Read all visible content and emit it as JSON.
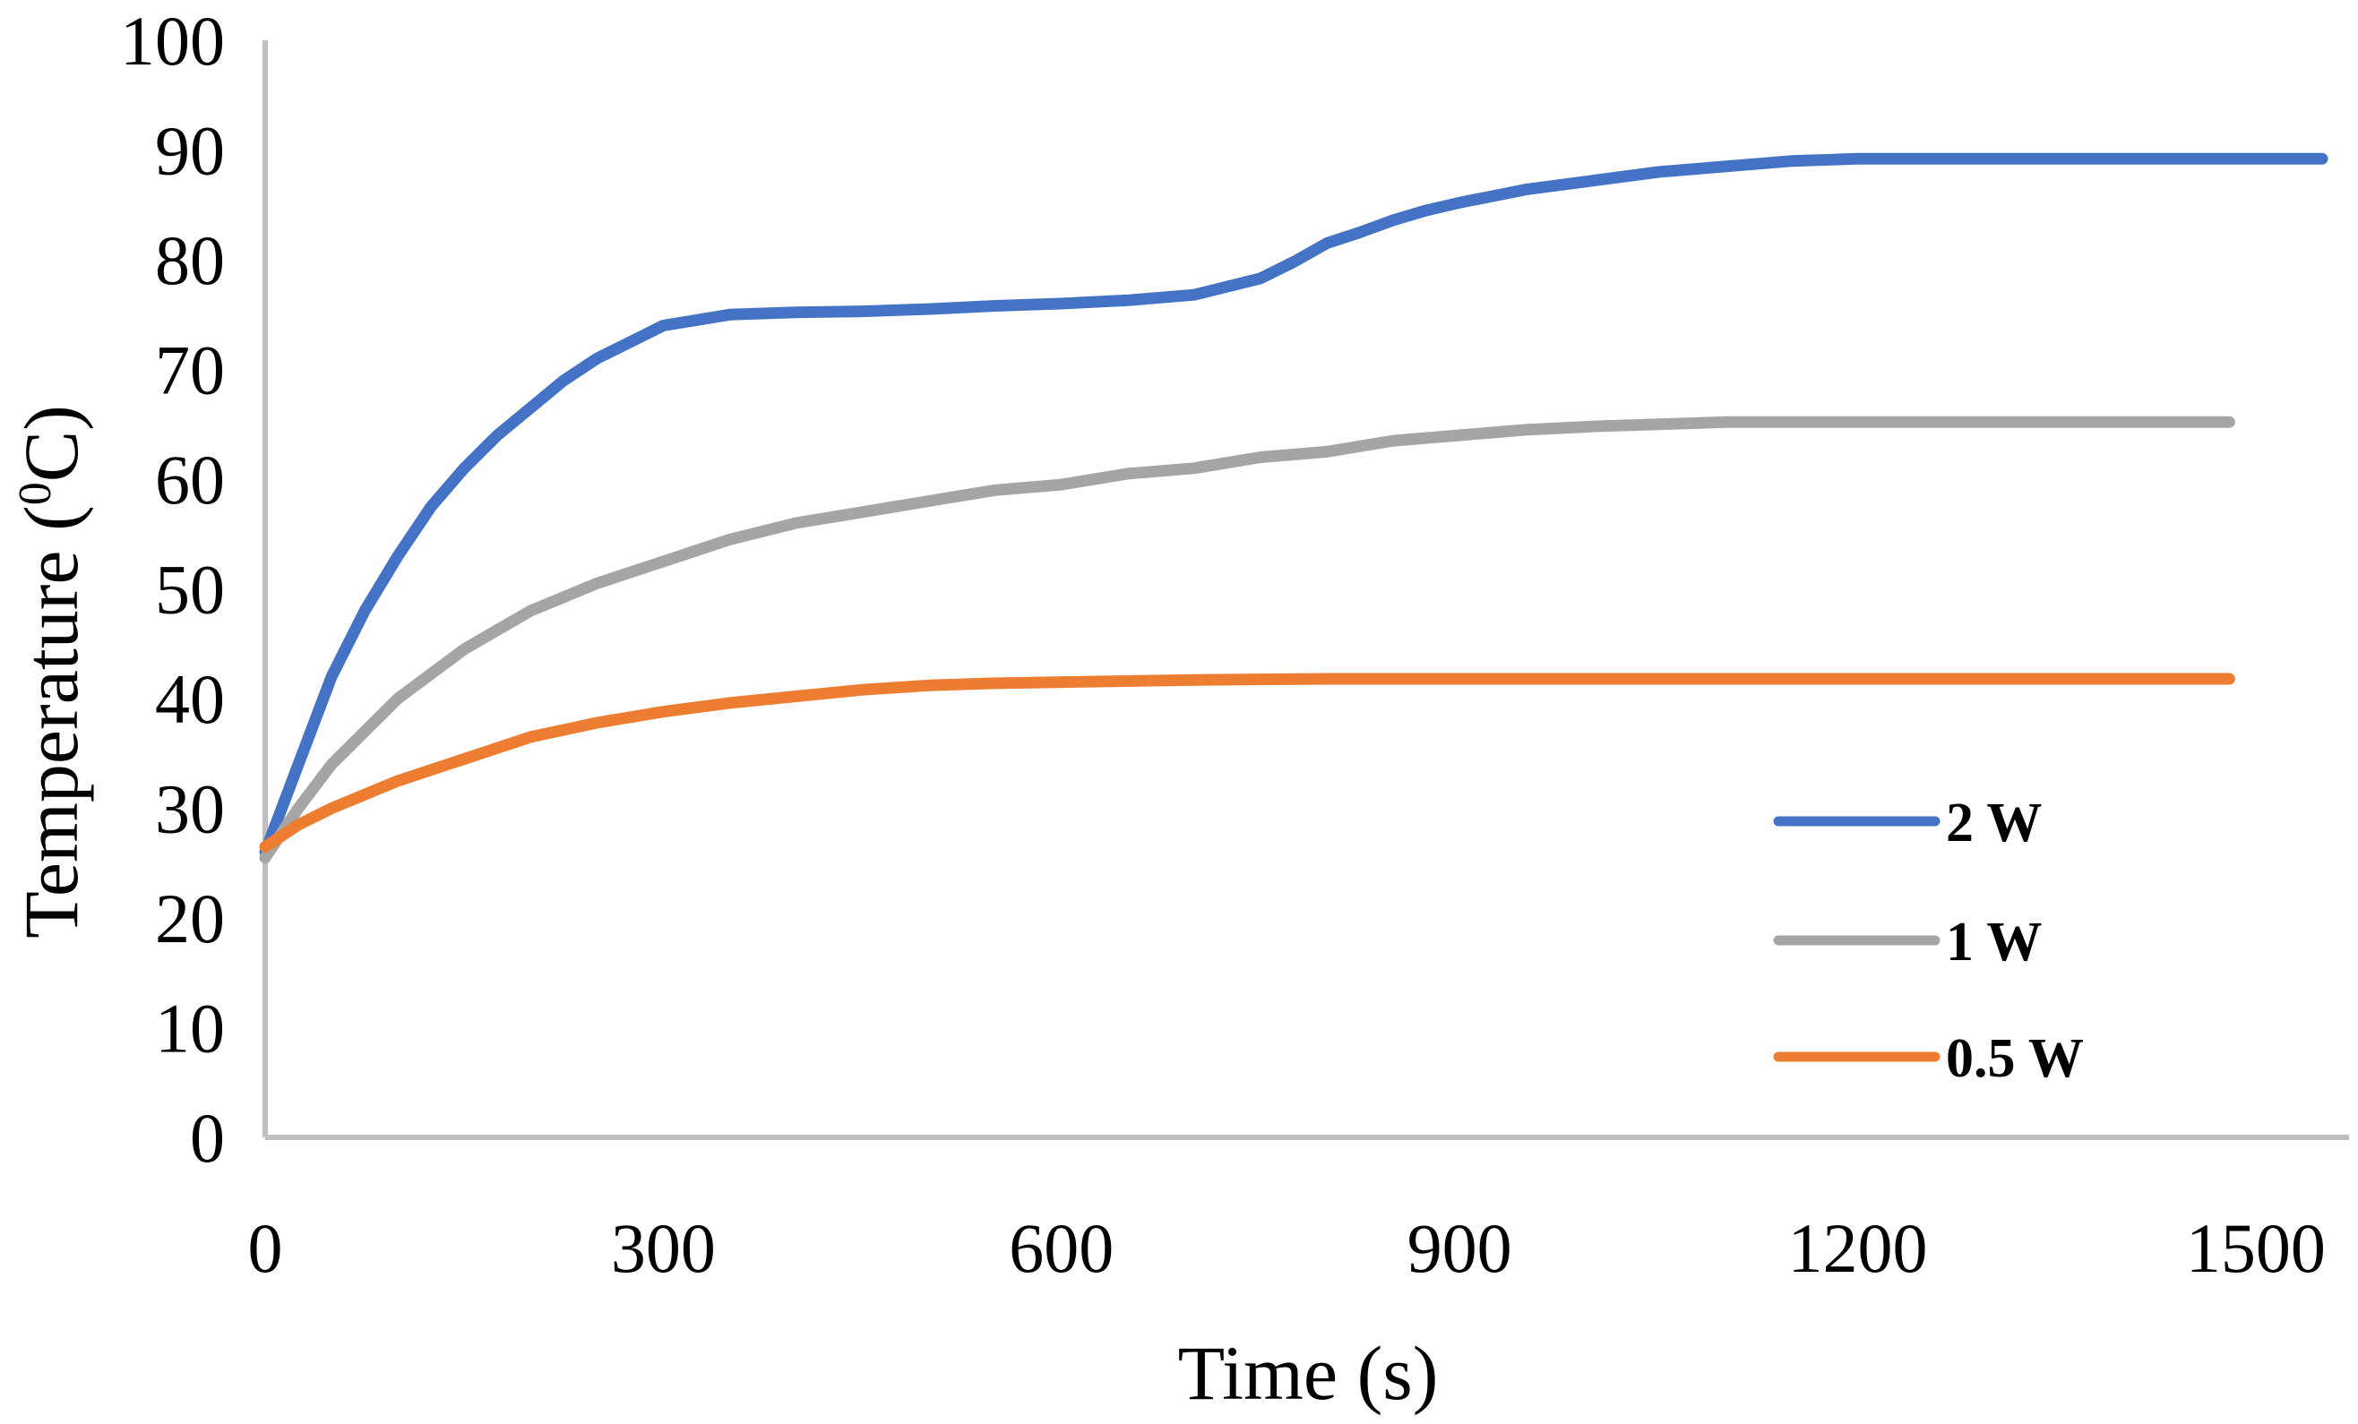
{
  "chart_data": {
    "type": "line",
    "title": "",
    "xlabel": "Time (s)",
    "ylabel_main": "Temperature (",
    "ylabel_sup": "0",
    "ylabel_tail": "C)",
    "xlim": [
      0,
      1550
    ],
    "ylim": [
      0,
      100
    ],
    "x_ticks": [
      0,
      300,
      600,
      900,
      1200,
      1500
    ],
    "x_tick_labels": [
      "0",
      "300",
      "600",
      "900",
      "1200",
      "1500"
    ],
    "y_ticks": [
      0,
      10,
      20,
      30,
      40,
      50,
      60,
      70,
      80,
      90,
      100
    ],
    "y_tick_labels": [
      "0",
      "10",
      "20",
      "30",
      "40",
      "50",
      "60",
      "70",
      "80",
      "90",
      "100"
    ],
    "grid": false,
    "legend_position": "lower-right",
    "series": [
      {
        "name": "2 W",
        "color": "#4472C4",
        "x": [
          0,
          25,
          50,
          75,
          100,
          125,
          150,
          175,
          200,
          225,
          250,
          275,
          300,
          325,
          350,
          400,
          450,
          500,
          550,
          600,
          650,
          700,
          750,
          775,
          800,
          825,
          850,
          875,
          900,
          950,
          1000,
          1050,
          1100,
          1150,
          1200,
          1300,
          1400,
          1500,
          1550
        ],
        "values": [
          26,
          34,
          42,
          48,
          53,
          57.5,
          61,
          64,
          66.5,
          69,
          71,
          72.5,
          74,
          74.5,
          75,
          75.2,
          75.3,
          75.5,
          75.8,
          76,
          76.3,
          76.8,
          78.3,
          79.8,
          81.5,
          82.5,
          83.6,
          84.5,
          85.2,
          86.4,
          87.2,
          88,
          88.5,
          89,
          89.2,
          89.2,
          89.2,
          89.2,
          89.2
        ]
      },
      {
        "name": "1 W",
        "color": "#A5A5A5",
        "x": [
          0,
          25,
          50,
          100,
          150,
          200,
          250,
          300,
          350,
          400,
          450,
          500,
          550,
          600,
          650,
          700,
          750,
          800,
          850,
          900,
          950,
          1000,
          1050,
          1100,
          1200,
          1300,
          1400,
          1480
        ],
        "values": [
          25.5,
          30,
          34,
          40,
          44.5,
          48,
          50.5,
          52.5,
          54.5,
          56,
          57,
          58,
          59,
          59.5,
          60.5,
          61,
          62,
          62.5,
          63.5,
          64,
          64.5,
          64.8,
          65,
          65.2,
          65.2,
          65.2,
          65.2,
          65.2
        ]
      },
      {
        "name": "0.5 W",
        "color": "#ED7D31",
        "x": [
          0,
          25,
          50,
          100,
          150,
          200,
          250,
          300,
          350,
          400,
          450,
          500,
          550,
          600,
          700,
          800,
          900,
          1000,
          1100,
          1200,
          1300,
          1400,
          1480
        ],
        "values": [
          26.5,
          28.5,
          30,
          32.5,
          34.5,
          36.5,
          37.8,
          38.8,
          39.6,
          40.2,
          40.8,
          41.2,
          41.4,
          41.5,
          41.7,
          41.8,
          41.8,
          41.8,
          41.8,
          41.8,
          41.8,
          41.8,
          41.8
        ]
      }
    ]
  }
}
